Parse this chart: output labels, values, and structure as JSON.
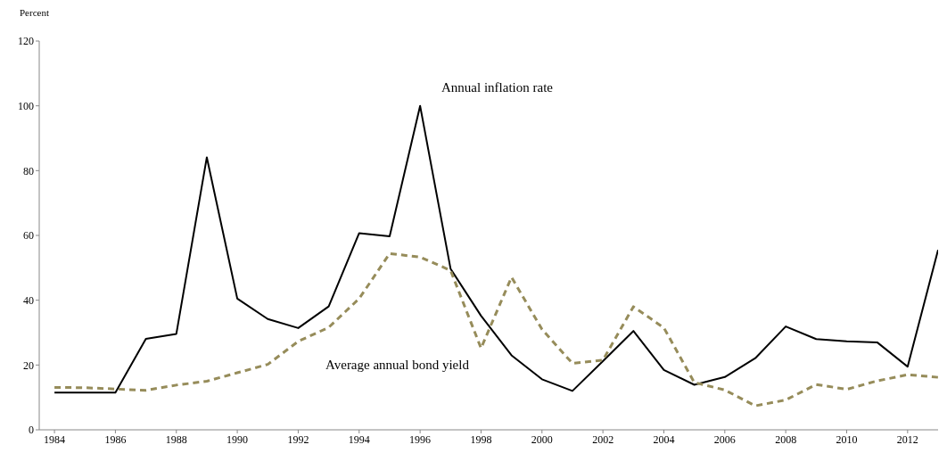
{
  "chart_data": {
    "type": "line",
    "ylabel": "Percent",
    "x": [
      1984,
      1985,
      1986,
      1987,
      1988,
      1989,
      1990,
      1991,
      1992,
      1993,
      1994,
      1995,
      1996,
      1997,
      1998,
      1999,
      2000,
      2001,
      2002,
      2003,
      2004,
      2005,
      2006,
      2007,
      2008,
      2009,
      2010,
      2011,
      2012,
      2013
    ],
    "series": [
      {
        "color": "#000000",
        "line_style": "solid",
        "values": [
          11.5,
          11.5,
          11.5,
          28.1,
          29.6,
          84.1,
          40.5,
          34.2,
          31.4,
          38.1,
          60.7,
          59.7,
          100,
          49.7,
          35.2,
          23,
          15.6,
          12,
          21.2,
          30.5,
          18.5,
          13.9,
          16.3,
          22.1,
          31.9,
          28,
          27.3,
          27,
          19.5,
          55.5
        ]
      },
      {
        "color": "#968c5a",
        "line_style": "dashed",
        "values": [
          13.1,
          13,
          12.6,
          12.2,
          13.8,
          15,
          17.6,
          20.2,
          27.3,
          31.6,
          40.5,
          54.4,
          53.3,
          49.2,
          25.2,
          47.1,
          31,
          20.5,
          21.5,
          38,
          31.5,
          14.6,
          12.3,
          7.4,
          9.2,
          14,
          12.5,
          15.1,
          17,
          16.2
        ]
      }
    ],
    "annotations": [
      "Annual inflation rate",
      "Average annual bond yield"
    ],
    "xlim": [
      1983.5,
      2013
    ],
    "xticks": [
      1984,
      1986,
      1988,
      1990,
      1992,
      1994,
      1996,
      1998,
      2000,
      2002,
      2004,
      2006,
      2008,
      2010,
      2012
    ],
    "ylim": [
      0,
      120
    ],
    "yticks": [
      0,
      20,
      40,
      60,
      80,
      100,
      120
    ],
    "grid": false,
    "legend": false,
    "marker": "none"
  }
}
